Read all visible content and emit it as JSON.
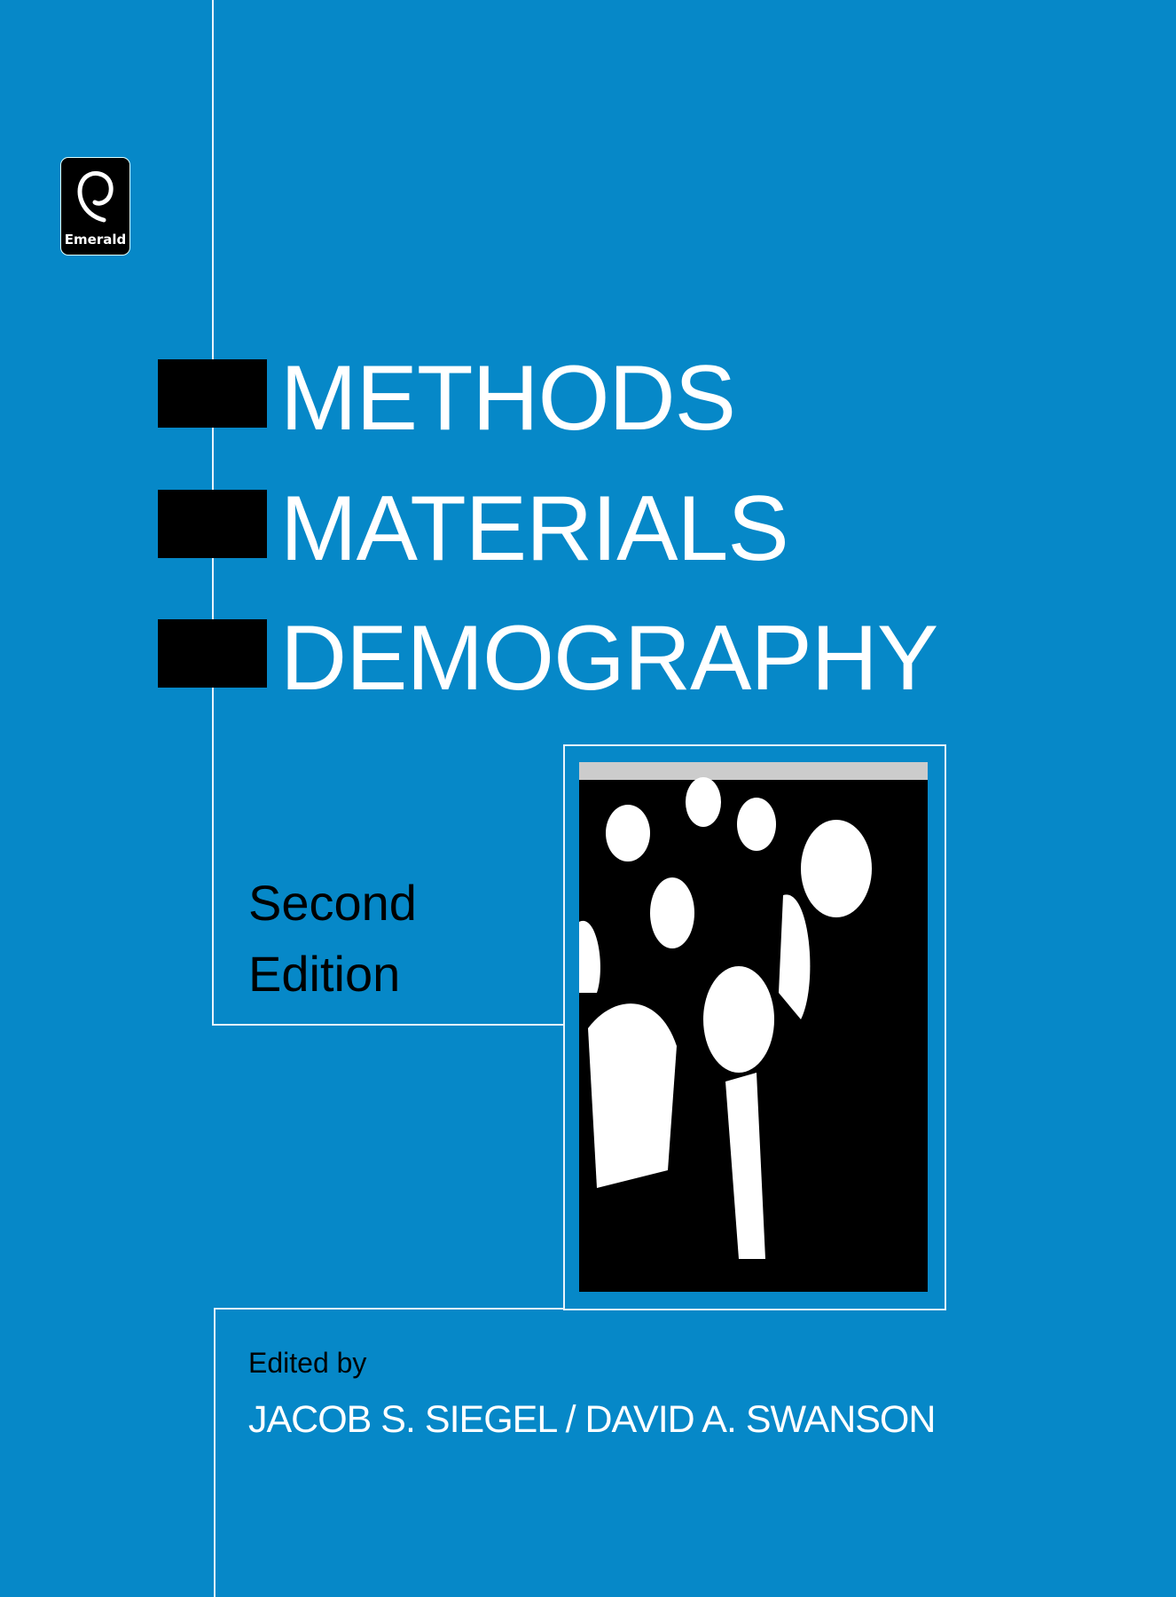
{
  "publisher": {
    "logo_text": "Emerald"
  },
  "title": {
    "lines": [
      "METHODS",
      "MATERIALS",
      "DEMOGRAPHY"
    ]
  },
  "edition": {
    "line1": "Second",
    "line2": "Edition"
  },
  "credits": {
    "edited_by": "Edited by",
    "editors": "JACOB S. SIEGEL / DAVID A. SWANSON"
  },
  "colors": {
    "background": "#0688c8",
    "title_text": "#ffffff",
    "accent_bars": "#000000"
  },
  "photo": {
    "description_icon": "crowd-photo"
  }
}
